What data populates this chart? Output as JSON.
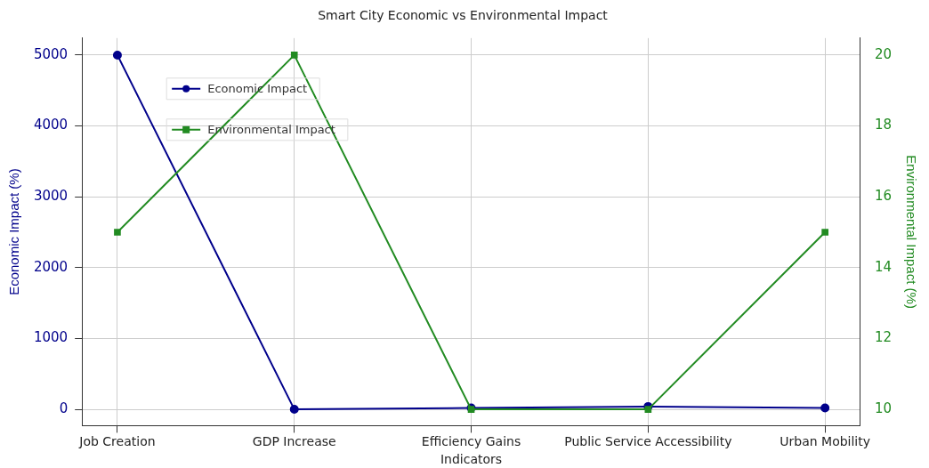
{
  "chart_data": {
    "type": "line",
    "title": "Smart City Economic vs Environmental Impact",
    "xlabel": "Indicators",
    "ylabel": "Economic Impact (%)",
    "y2label": "Environmental Impact (%)",
    "categories": [
      "Job Creation",
      "GDP Increase",
      "Efficiency Gains",
      "Public Service Accessibility",
      "Urban Mobility"
    ],
    "series": [
      {
        "name": "Economic Impact",
        "color": "#00008b",
        "values": [
          5000,
          0,
          20,
          40,
          20
        ],
        "marker": "circle"
      },
      {
        "name": "Environmental Impact",
        "color": "#228b22",
        "values": [
          15,
          20,
          10,
          10,
          15
        ],
        "axis": "y2",
        "marker": "square"
      }
    ],
    "ylim": [
      -230,
      5240
    ],
    "yticks": [
      0,
      1000,
      2000,
      3000,
      4000,
      5000
    ],
    "y2lim": [
      9.54,
      20.48
    ],
    "y2ticks": [
      10,
      12,
      14,
      16,
      18,
      20
    ],
    "grid": true,
    "legend": "top left",
    "line_style": "solid"
  }
}
